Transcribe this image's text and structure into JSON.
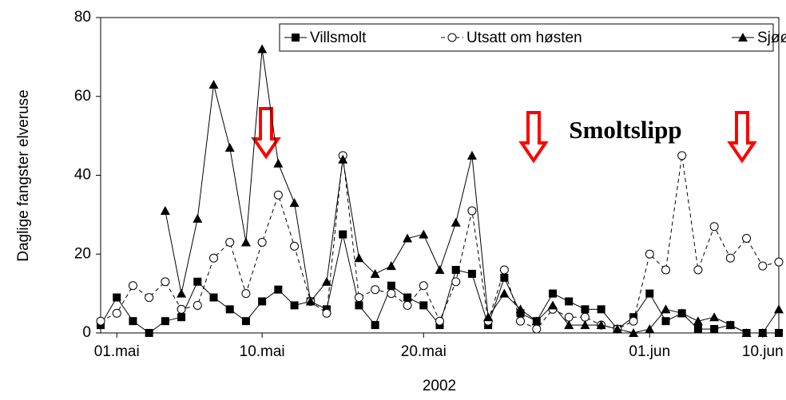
{
  "chart_data": {
    "type": "line",
    "y_label": "Daglige fangster elveruse",
    "x_label": "2002",
    "annotation": "Smoltslipp",
    "annotation_color": "#ff0000",
    "categories": [
      null,
      "01.mai",
      null,
      null,
      null,
      null,
      null,
      null,
      null,
      null,
      "10.mai",
      null,
      null,
      null,
      null,
      null,
      null,
      null,
      null,
      null,
      "20.mai",
      null,
      null,
      null,
      null,
      null,
      null,
      null,
      null,
      null,
      null,
      null,
      null,
      null,
      "01.jun",
      null,
      null,
      null,
      null,
      null,
      null,
      "10.jun",
      null
    ],
    "series": [
      {
        "name": "Villsmolt",
        "color": "#000000",
        "marker": "square",
        "dashed": false,
        "values": [
          2,
          9,
          3,
          0,
          3,
          4,
          13,
          9,
          6,
          3,
          8,
          11,
          7,
          8,
          6,
          25,
          7,
          2,
          12,
          9,
          7,
          2,
          16,
          15,
          2,
          14,
          5,
          3,
          10,
          8,
          6,
          6,
          1,
          4,
          10,
          3,
          5,
          1,
          1,
          2,
          0,
          0,
          0
        ]
      },
      {
        "name": "Utsatt om høsten",
        "color": "#000000",
        "marker": "circle",
        "dashed": true,
        "values": [
          3,
          5,
          12,
          9,
          13,
          6,
          7,
          19,
          23,
          10,
          23,
          35,
          22,
          8,
          5,
          45,
          9,
          11,
          10,
          7,
          12,
          3,
          13,
          31,
          3,
          16,
          3,
          1,
          6,
          4,
          4,
          2,
          1,
          3,
          20,
          16,
          45,
          16,
          27,
          19,
          24,
          17,
          18
        ]
      },
      {
        "name": "Sjøørretsmolt",
        "color": "#000000",
        "marker": "triangle",
        "dashed": false,
        "values": [
          null,
          null,
          null,
          null,
          31,
          10,
          29,
          63,
          47,
          23,
          72,
          43,
          33,
          8,
          13,
          44,
          19,
          15,
          17,
          24,
          25,
          16,
          28,
          45,
          4,
          10,
          6,
          3,
          7,
          2,
          2,
          2,
          1,
          0,
          1,
          6,
          5,
          3,
          4,
          2,
          0,
          0,
          6
        ]
      }
    ],
    "ylim": [
      0,
      80
    ],
    "yticks": [
      0,
      20,
      40,
      60,
      80
    ],
    "grid": false,
    "legend": "top-right"
  }
}
